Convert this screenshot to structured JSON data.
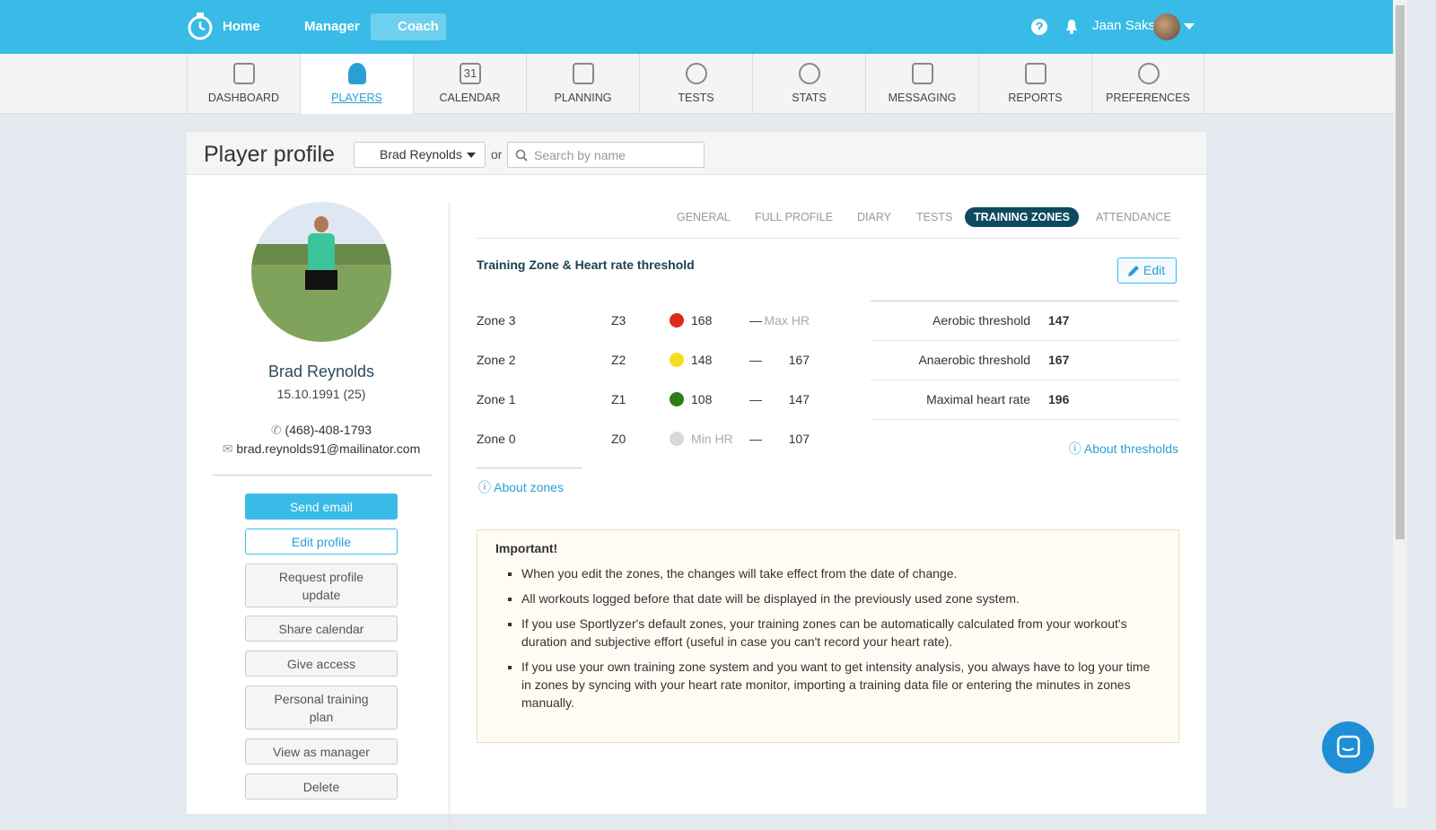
{
  "topbar": {
    "nav": [
      "Home",
      "Manager",
      "Coach"
    ],
    "user": "Jaan Saks"
  },
  "tabs": {
    "items": [
      "DASHBOARD",
      "PLAYERS",
      "CALENDAR",
      "PLANNING",
      "TESTS",
      "STATS",
      "MESSAGING",
      "REPORTS",
      "PREFERENCES"
    ],
    "calendar_day": "31"
  },
  "header": {
    "title": "Player profile",
    "player_select": "Brad Reynolds",
    "or": "or",
    "search_placeholder": "Search by name"
  },
  "profile": {
    "name": "Brad Reynolds",
    "birth": "15.10.1991 (25)",
    "phone": "(468)-408-1793",
    "email": "brad.reynolds91@mailinator.com",
    "buttons": [
      "Send email",
      "Edit profile",
      "Request profile update",
      "Share calendar",
      "Give access",
      "Personal training plan",
      "View as manager",
      "Delete"
    ]
  },
  "subtabs": [
    "GENERAL",
    "FULL PROFILE",
    "DIARY",
    "TESTS",
    "TRAINING ZONES",
    "ATTENDANCE"
  ],
  "zones": {
    "title": "Training Zone & Heart rate threshold",
    "edit": "Edit",
    "dash": "—",
    "rows": [
      {
        "name": "Zone 3",
        "code": "Z3",
        "color": "#e0281c",
        "low": 168,
        "high": "Max HR"
      },
      {
        "name": "Zone 2",
        "code": "Z2",
        "color": "#f5dc1e",
        "low": 148,
        "high": 167
      },
      {
        "name": "Zone 1",
        "code": "Z1",
        "color": "#2e7d18",
        "low": 108,
        "high": 147
      },
      {
        "name": "Zone 0",
        "code": "Z0",
        "color": "#d9d9d9",
        "low": "Min HR",
        "high": 107
      }
    ],
    "about": "About zones"
  },
  "thresholds": {
    "rows": [
      {
        "label": "Aerobic threshold",
        "value": 147
      },
      {
        "label": "Anaerobic threshold",
        "value": 167
      },
      {
        "label": "Maximal heart rate",
        "value": 196
      }
    ],
    "about": "About thresholds"
  },
  "important": {
    "title": "Important!",
    "items": [
      "When you edit the zones, the changes will take effect from the date of change.",
      "All workouts logged before that date will be displayed in the previously used zone system.",
      "If you use Sportlyzer's default zones, your training zones can be automatically calculated from your workout's duration and subjective effort (useful in case you can't record your heart rate).",
      "If you use your own training zone system and you want to get intensity analysis, you always have to log your time in zones by syncing with your heart rate monitor, importing a training data file or entering the minutes in zones manually."
    ]
  }
}
